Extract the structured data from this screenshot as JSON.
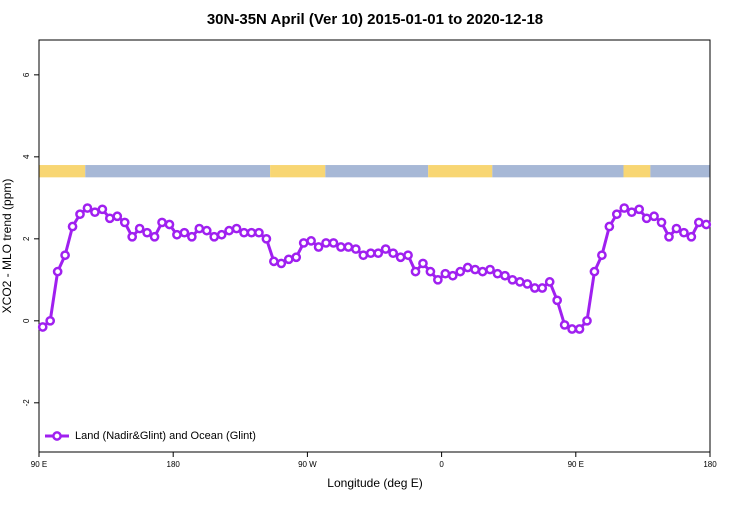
{
  "chart_data": {
    "type": "line",
    "title": "30N-35N April (Ver 10)   2015-01-01 to 2020-12-18",
    "xlabel": "Longitude (deg E)",
    "ylabel": "XCO2 - MLO trend (ppm)",
    "xlim": [
      90,
      540
    ],
    "xticks": [
      {
        "value": 90,
        "label": "90 E"
      },
      {
        "value": 180,
        "label": "180"
      },
      {
        "value": 270,
        "label": "90 W"
      },
      {
        "value": 360,
        "label": "0"
      },
      {
        "value": 450,
        "label": "90 E"
      },
      {
        "value": 540,
        "label": "180"
      }
    ],
    "ylim": [
      -3.2,
      6.85
    ],
    "yticks": [
      -2,
      0,
      2,
      4,
      6
    ],
    "x": [
      92.5,
      97.5,
      102.5,
      107.5,
      112.5,
      117.5,
      122.5,
      127.5,
      132.5,
      137.5,
      142.5,
      147.5,
      152.5,
      157.5,
      162.5,
      167.5,
      172.5,
      177.5,
      182.5,
      187.5,
      192.5,
      197.5,
      202.5,
      207.5,
      212.5,
      217.5,
      222.5,
      227.5,
      232.5,
      237.5,
      242.5,
      247.5,
      252.5,
      257.5,
      262.5,
      267.5,
      272.5,
      277.5,
      282.5,
      287.5,
      292.5,
      297.5,
      302.5,
      307.5,
      312.5,
      317.5,
      322.5,
      327.5,
      332.5,
      337.5,
      342.5,
      347.5,
      352.5,
      357.5,
      362.5,
      367.5,
      372.5,
      377.5,
      382.5,
      387.5,
      392.5,
      397.5,
      402.5,
      407.5,
      412.5,
      417.5,
      422.5,
      427.5,
      432.5,
      437.5,
      442.5,
      447.5,
      452.5,
      457.5,
      462.5,
      467.5,
      472.5,
      477.5,
      482.5,
      487.5,
      492.5,
      497.5,
      502.5,
      507.5,
      512.5,
      517.5,
      522.5,
      527.5,
      532.5,
      537.5
    ],
    "series": [
      {
        "name": "Land (Nadir&Glint) and Ocean (Glint)",
        "color": "#a020f0",
        "values": [
          -0.15,
          0,
          1.2,
          1.6,
          2.3,
          2.6,
          2.75,
          2.65,
          2.72,
          2.5,
          2.55,
          2.4,
          2.05,
          2.25,
          2.15,
          2.05,
          2.4,
          2.35,
          2.1,
          2.15,
          2.05,
          2.25,
          2.2,
          2.05,
          2.1,
          2.2,
          2.25,
          2.15,
          2.15,
          2.15,
          2.0,
          1.45,
          1.4,
          1.5,
          1.55,
          1.9,
          1.95,
          1.8,
          1.9,
          1.9,
          1.8,
          1.8,
          1.75,
          1.6,
          1.65,
          1.65,
          1.75,
          1.65,
          1.55,
          1.6,
          1.2,
          1.4,
          1.2,
          1.0,
          1.15,
          1.1,
          1.2,
          1.3,
          1.25,
          1.2,
          1.25,
          1.15,
          1.1,
          1.0,
          0.95,
          0.9,
          0.8,
          0.8,
          0.95,
          0.5,
          -0.1,
          -0.2,
          -0.2,
          0,
          1.2,
          1.6,
          2.3,
          2.6,
          2.75,
          2.65,
          2.72,
          2.5,
          2.55,
          2.4,
          2.05,
          2.25,
          2.15,
          2.05,
          2.4,
          2.35
        ]
      }
    ],
    "strip": {
      "y": [
        3.5,
        3.8
      ],
      "segments": [
        {
          "x": [
            90,
            121
          ],
          "color": "#f8d673"
        },
        {
          "x": [
            121,
            245
          ],
          "color": "#a7b8d6"
        },
        {
          "x": [
            245,
            282
          ],
          "color": "#f8d673"
        },
        {
          "x": [
            282,
            351
          ],
          "color": "#a7b8d6"
        },
        {
          "x": [
            351,
            394
          ],
          "color": "#f8d673"
        },
        {
          "x": [
            394,
            482
          ],
          "color": "#a7b8d6"
        },
        {
          "x": [
            482,
            500
          ],
          "color": "#f8d673"
        },
        {
          "x": [
            500,
            540
          ],
          "color": "#a7b8d6"
        }
      ]
    },
    "legend": "bottom-left"
  }
}
